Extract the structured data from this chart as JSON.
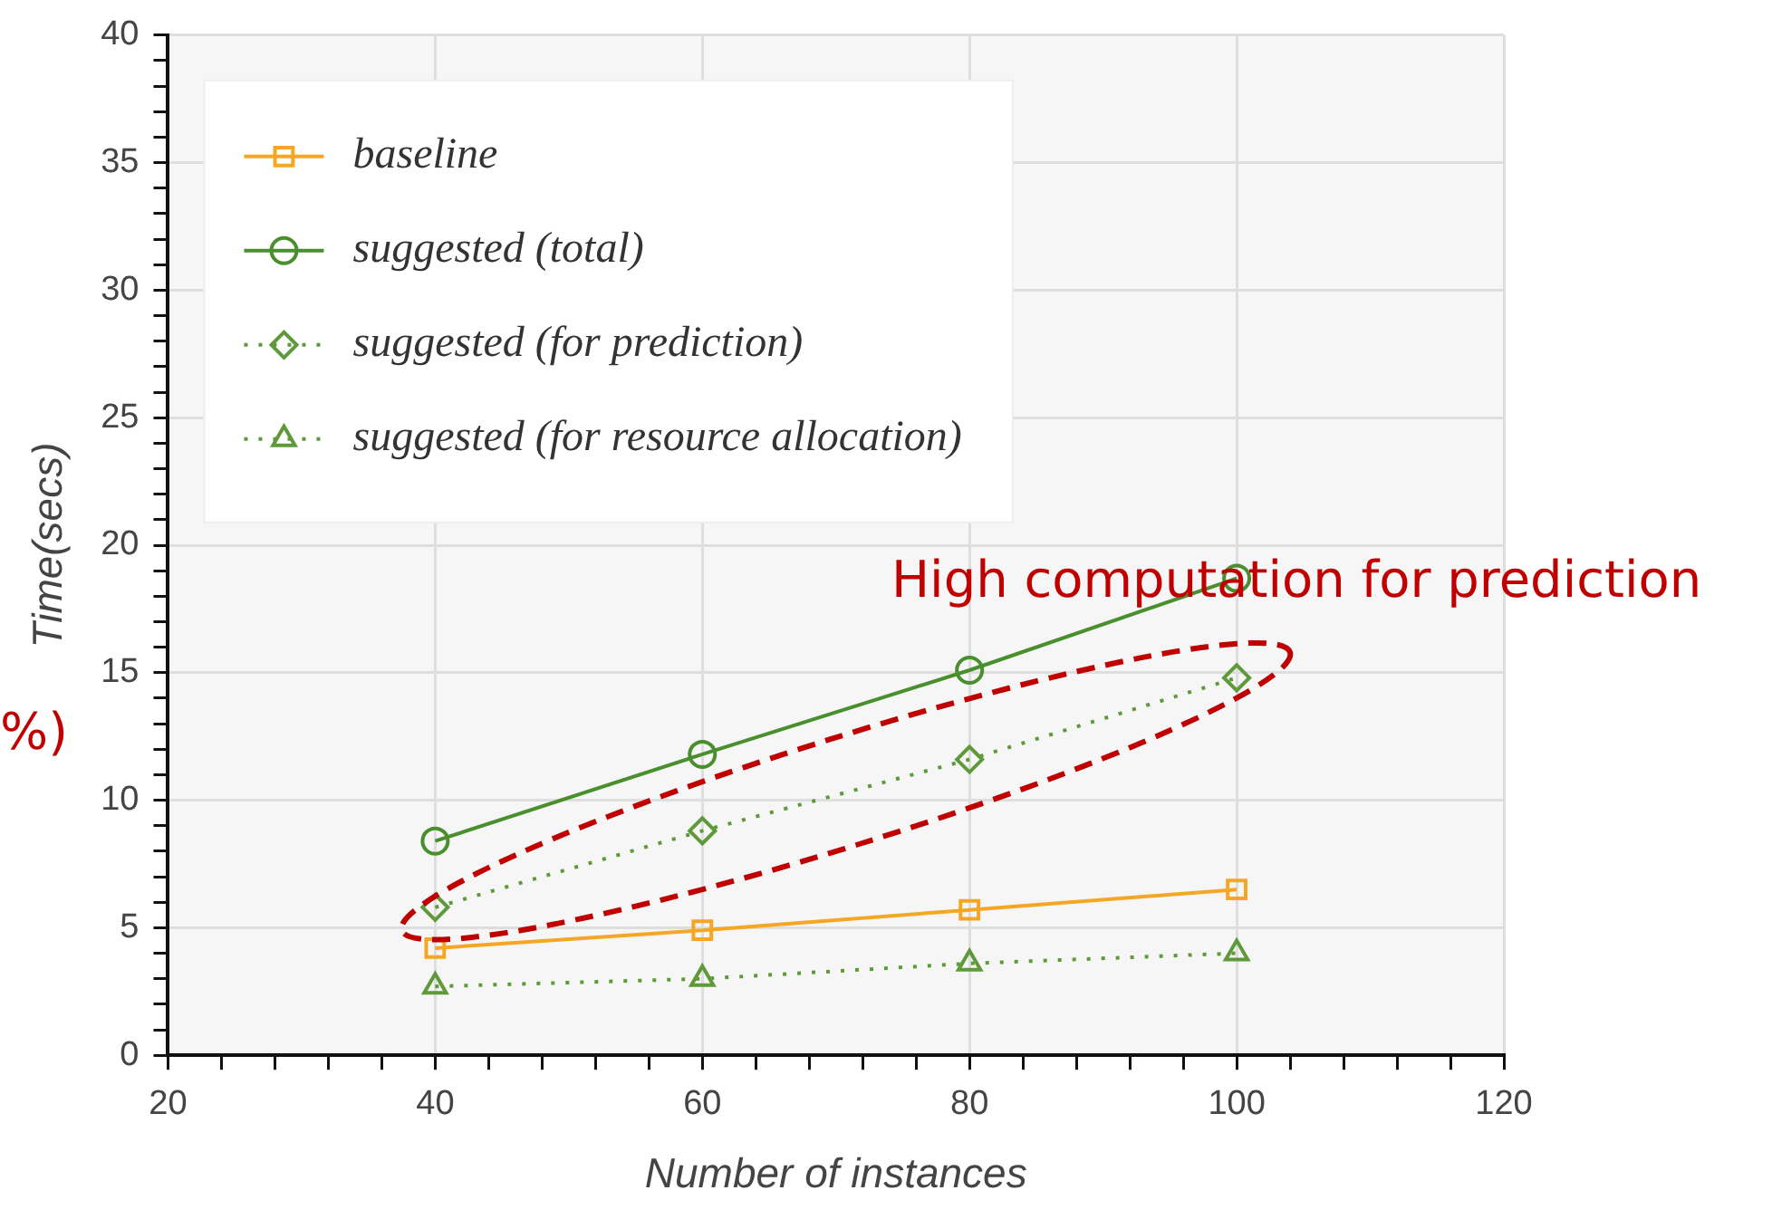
{
  "chart_data": {
    "type": "line",
    "xlabel": "Number of instances",
    "ylabel": "Time(secs)",
    "x": [
      40,
      60,
      80,
      100
    ],
    "series": [
      {
        "name": "baseline",
        "color": "#f5a623",
        "values": [
          4.2,
          4.9,
          5.7,
          6.5
        ],
        "marker": "square",
        "line_style": "solid"
      },
      {
        "name": "suggested (total)",
        "color": "#4a8f2e",
        "values": [
          8.4,
          11.8,
          15.1,
          18.7
        ],
        "marker": "circle",
        "line_style": "solid"
      },
      {
        "name": "suggested (for prediction)",
        "color": "#5f9a3a",
        "values": [
          5.8,
          8.8,
          11.6,
          14.8
        ],
        "marker": "diamond",
        "line_style": "dotted"
      },
      {
        "name": "suggested (for resource allocation)",
        "color": "#5f9a3a",
        "values": [
          2.7,
          3.0,
          3.6,
          4.0
        ],
        "marker": "triangle",
        "line_style": "dotted"
      }
    ],
    "xlim": [
      20,
      120
    ],
    "xticks": [
      20,
      {
        "value": 24,
        "label": null
      },
      {
        "value": 28,
        "label": null
      },
      {
        "value": 32,
        "label": null
      },
      {
        "value": 36,
        "label": null
      },
      40,
      {
        "value": 44,
        "label": null
      },
      {
        "value": 48,
        "label": null
      },
      {
        "value": 52,
        "label": null
      },
      {
        "value": 56,
        "label": null
      },
      60,
      {
        "value": 64,
        "label": null
      },
      {
        "value": 68,
        "label": null
      },
      {
        "value": 72,
        "label": null
      },
      {
        "value": 76,
        "label": null
      },
      80,
      {
        "value": 84,
        "label": null
      },
      {
        "value": 88,
        "label": null
      },
      {
        "value": 92,
        "label": null
      },
      {
        "value": 96,
        "label": null
      },
      100,
      {
        "value": 104,
        "label": null
      },
      {
        "value": 108,
        "label": null
      },
      {
        "value": 112,
        "label": null
      },
      {
        "value": 116,
        "label": null
      },
      120
    ],
    "ylim": [
      0,
      40
    ],
    "yticks": [
      0,
      {
        "value": 1,
        "label": null
      },
      {
        "value": 2,
        "label": null
      },
      {
        "value": 3,
        "label": null
      },
      {
        "value": 4,
        "label": null
      },
      5,
      {
        "value": 6,
        "label": null
      },
      {
        "value": 7,
        "label": null
      },
      {
        "value": 8,
        "label": null
      },
      {
        "value": 9,
        "label": null
      },
      10,
      {
        "value": 11,
        "label": null
      },
      {
        "value": 12,
        "label": null
      },
      {
        "value": 13,
        "label": null
      },
      {
        "value": 14,
        "label": null
      },
      15,
      {
        "value": 16,
        "label": null
      },
      {
        "value": 17,
        "label": null
      },
      {
        "value": 18,
        "label": null
      },
      {
        "value": 19,
        "label": null
      },
      20,
      {
        "value": 21,
        "label": null
      },
      {
        "value": 22,
        "label": null
      },
      {
        "value": 23,
        "label": null
      },
      {
        "value": 24,
        "label": null
      },
      25,
      {
        "value": 26,
        "label": null
      },
      {
        "value": 27,
        "label": null
      },
      {
        "value": 28,
        "label": null
      },
      {
        "value": 29,
        "label": null
      },
      30,
      {
        "value": 31,
        "label": null
      },
      {
        "value": 32,
        "label": null
      },
      {
        "value": 33,
        "label": null
      },
      {
        "value": 34,
        "label": null
      },
      35,
      {
        "value": 36,
        "label": null
      },
      {
        "value": 37,
        "label": null
      },
      {
        "value": 38,
        "label": null
      },
      {
        "value": 39,
        "label": null
      },
      40
    ],
    "grid": true,
    "legend": "top left",
    "annotations": [
      "High computation for prediction",
      "%)"
    ]
  }
}
